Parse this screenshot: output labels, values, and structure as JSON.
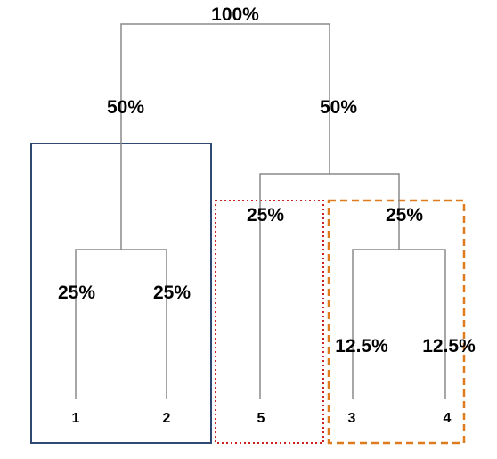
{
  "diagram": {
    "root_label": "100%",
    "level1": {
      "left": "50%",
      "right": "50%"
    },
    "group_left": {
      "left_child": "25%",
      "right_child": "25%",
      "leaves": [
        "1",
        "2"
      ]
    },
    "group_right": {
      "left_child": "25%",
      "right_child": "25%",
      "leaf_single": "5",
      "sub": {
        "left_child": "12.5%",
        "right_child": "12.5%",
        "leaves": [
          "3",
          "4"
        ]
      }
    },
    "box_colors": {
      "solid": "#2e4a72",
      "dotted": "#cc2222",
      "dashed": "#e07a1e"
    },
    "line_color": "#8a8a8a"
  }
}
